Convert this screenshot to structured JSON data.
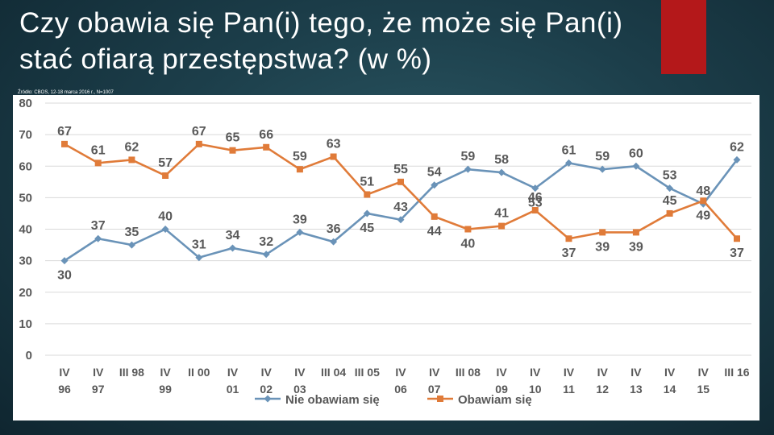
{
  "slide": {
    "title_line1": "Czy  obawia  się  Pan(i)  tego,  że  może  się  Pan(i)",
    "title_line2": "stać ofiarą przestępstwa? (w %)",
    "source": "Źródło: CBOS, 12-18 marca 2016 r., N=1007"
  },
  "colors": {
    "series_blue": "#6a93b8",
    "series_orange": "#e07b39",
    "label_text": "#595959",
    "grid": "#d9d9d9",
    "accent_red": "#b4181a"
  },
  "chart_data": {
    "type": "line",
    "title": "",
    "xlabel": "",
    "ylabel": "",
    "ylim": [
      0,
      80
    ],
    "yticks": [
      0,
      10,
      20,
      30,
      40,
      50,
      60,
      70,
      80
    ],
    "grid": "horizontal",
    "legend_position": "bottom",
    "categories": [
      {
        "top": "IV",
        "bottom": "96"
      },
      {
        "top": "IV",
        "bottom": "97"
      },
      {
        "top": "III 98",
        "bottom": ""
      },
      {
        "top": "IV",
        "bottom": "99"
      },
      {
        "top": "II 00",
        "bottom": ""
      },
      {
        "top": "IV",
        "bottom": "01"
      },
      {
        "top": "IV",
        "bottom": "02"
      },
      {
        "top": "IV",
        "bottom": "03"
      },
      {
        "top": "III 04",
        "bottom": ""
      },
      {
        "top": "III 05",
        "bottom": ""
      },
      {
        "top": "IV",
        "bottom": "06"
      },
      {
        "top": "IV",
        "bottom": "07"
      },
      {
        "top": "III 08",
        "bottom": ""
      },
      {
        "top": "IV",
        "bottom": "09"
      },
      {
        "top": "IV",
        "bottom": "10"
      },
      {
        "top": "IV",
        "bottom": "11"
      },
      {
        "top": "IV",
        "bottom": "12"
      },
      {
        "top": "IV",
        "bottom": "13"
      },
      {
        "top": "IV",
        "bottom": "14"
      },
      {
        "top": "IV",
        "bottom": "15"
      },
      {
        "top": "III 16",
        "bottom": ""
      }
    ],
    "series": [
      {
        "name": "Nie obawiam się",
        "color": "#6a93b8",
        "marker": "diamond",
        "values": [
          30,
          37,
          35,
          40,
          31,
          34,
          32,
          39,
          36,
          45,
          43,
          54,
          59,
          58,
          53,
          61,
          59,
          60,
          53,
          48,
          62
        ],
        "label_pos": [
          "below",
          "above",
          "above",
          "above",
          "above",
          "above",
          "above",
          "above",
          "above",
          "below",
          "above",
          "above",
          "above",
          "above",
          "below",
          "above",
          "above",
          "above",
          "above",
          "above",
          "above"
        ]
      },
      {
        "name": "Obawiam się",
        "color": "#e07b39",
        "marker": "square",
        "values": [
          67,
          61,
          62,
          57,
          67,
          65,
          66,
          59,
          63,
          51,
          55,
          44,
          40,
          41,
          46,
          37,
          39,
          39,
          45,
          49,
          37
        ],
        "label_pos": [
          "above",
          "above",
          "above",
          "above",
          "above",
          "above",
          "above",
          "above",
          "above",
          "above",
          "above",
          "below",
          "below",
          "above",
          "above",
          "below",
          "below",
          "below",
          "above",
          "below",
          "below"
        ]
      }
    ]
  }
}
